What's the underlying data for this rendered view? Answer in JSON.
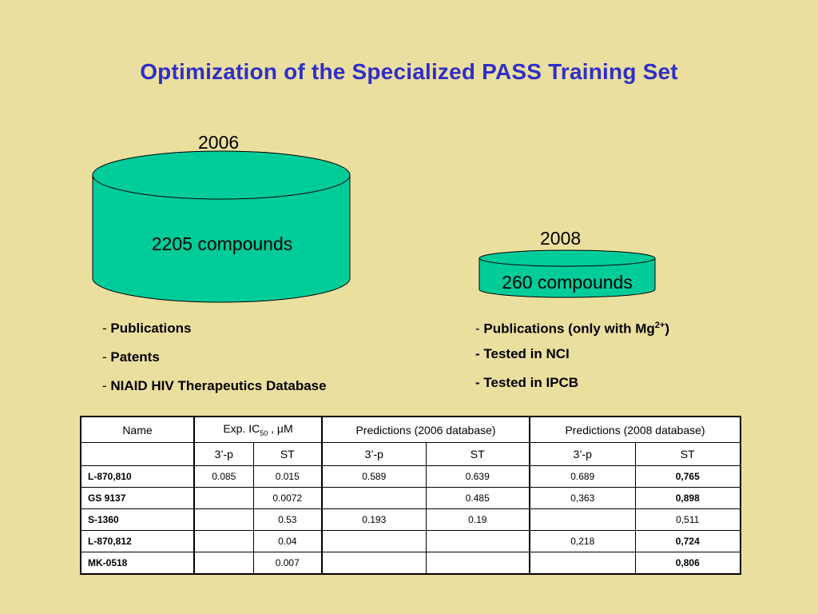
{
  "title": "Optimization of the Specialized PASS Training Set",
  "colors": {
    "title": "#2f2fc8",
    "background": "#ebdf9f",
    "cylinder_fill": "#00cc99"
  },
  "db2006": {
    "year": "2006",
    "label": "2205 compounds"
  },
  "db2008": {
    "year": "2008",
    "label": "260 compounds"
  },
  "bullets_2006": [
    {
      "dash": "- ",
      "text": "Publications"
    },
    {
      "dash": "- ",
      "text": "Patents"
    },
    {
      "dash": "- ",
      "text": "NIAID HIV Therapeutics Database"
    }
  ],
  "bullets_2008": [
    {
      "dash": "- ",
      "text": "Publications (only with Mg",
      "sup": "2+",
      "tail": ")"
    },
    {
      "dash": "",
      "text": "- Tested in NCI"
    },
    {
      "dash": "",
      "text": "- Tested in IPCB"
    }
  ],
  "table": {
    "header": {
      "name": "Name",
      "exp_prefix": "Exp. IC",
      "exp_sub": "50",
      "exp_suffix": " , µM",
      "pred2006": "Predictions (2006 database)",
      "pred2008": "Predictions (2008 database)"
    },
    "subheader": [
      "3’-p",
      "ST",
      "3’-p",
      "ST",
      "3’-p",
      "ST"
    ],
    "rows": [
      {
        "name": "L-870,810",
        "cells": [
          "0.085",
          "0.015",
          "0.589",
          "0.639",
          "0.689",
          "0,765"
        ]
      },
      {
        "name": "GS 9137",
        "cells": [
          "",
          "0.0072",
          "",
          "0.485",
          "0,363",
          "0,898"
        ]
      },
      {
        "name": "S-1360",
        "cells": [
          "",
          "0.53",
          "0.193",
          "0.19",
          "",
          "0,511"
        ]
      },
      {
        "name": "L-870,812",
        "cells": [
          "",
          "0.04",
          "",
          "",
          "0,218",
          "0,724"
        ]
      },
      {
        "name": "MK-0518",
        "cells": [
          "",
          "0.007",
          "",
          "",
          "",
          "0,806"
        ]
      }
    ],
    "bold_last_column_rows": [
      true,
      true,
      false,
      true,
      true
    ]
  }
}
